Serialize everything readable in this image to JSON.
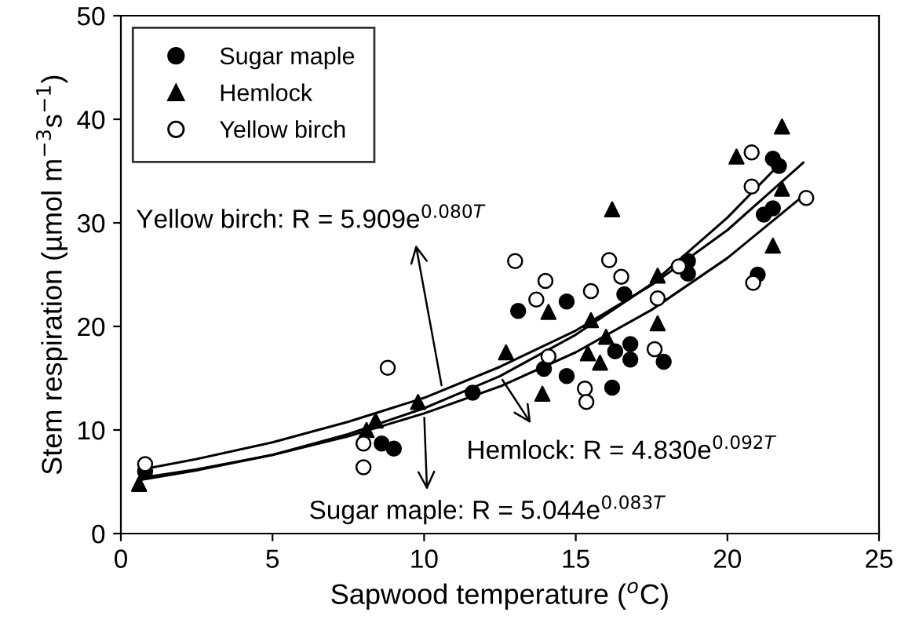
{
  "chart_data": {
    "type": "scatter",
    "xlabel": "Sapwood temperature ($^{o}$C)",
    "ylabel": "Stem respiration (µmol m$^{−3}$s$^{−1}$)",
    "xlim": [
      0,
      25
    ],
    "ylim": [
      0,
      50
    ],
    "xticks": [
      0,
      5,
      10,
      15,
      20,
      25
    ],
    "yticks": [
      0,
      10,
      20,
      30,
      40,
      50
    ],
    "grid": false,
    "legend": "top left",
    "series": [
      {
        "name": "Sugar maple",
        "color": "#000000",
        "marker": "circle",
        "x": [
          0.8,
          8.6,
          9.0,
          11.6,
          13.1,
          13.95,
          14.7,
          14.7,
          16.2,
          16.3,
          16.6,
          16.8,
          16.8,
          17.9,
          18.7,
          18.7,
          21.0,
          21.2,
          21.5,
          21.5,
          21.7
        ],
        "values": [
          6.0,
          8.7,
          8.2,
          13.6,
          21.5,
          15.9,
          15.2,
          22.4,
          14.1,
          17.6,
          23.1,
          18.3,
          16.8,
          16.6,
          26.3,
          25.1,
          25.0,
          30.8,
          31.4,
          36.2,
          35.5
        ]
      },
      {
        "name": "Hemlock",
        "color": "#000000",
        "marker": "triangle",
        "x": [
          0.6,
          8.1,
          8.4,
          9.8,
          12.7,
          13.9,
          14.1,
          15.4,
          15.5,
          15.8,
          16.0,
          16.2,
          17.7,
          17.7,
          20.3,
          21.5,
          21.8,
          21.8
        ],
        "values": [
          4.8,
          10.0,
          10.9,
          12.7,
          17.5,
          13.5,
          21.4,
          17.4,
          20.6,
          16.5,
          19.0,
          31.3,
          20.3,
          24.9,
          36.4,
          27.8,
          33.3,
          39.3
        ]
      },
      {
        "name": "Yellow birch",
        "color": "#ffffff",
        "marker": "circle",
        "x": [
          0.8,
          8.0,
          8.0,
          8.8,
          13.0,
          13.7,
          14.0,
          14.1,
          15.3,
          15.35,
          15.5,
          16.1,
          16.5,
          17.6,
          17.7,
          18.4,
          20.8,
          20.8,
          20.85,
          22.6
        ],
        "values": [
          6.7,
          8.7,
          6.4,
          16.0,
          26.3,
          22.6,
          24.4,
          17.1,
          14.0,
          12.7,
          23.4,
          26.4,
          24.8,
          17.8,
          22.7,
          25.8,
          36.8,
          33.5,
          24.2,
          32.4
        ]
      },
      {
        "type": "line",
        "color": "#000000",
        "x": [
          0.7,
          2.5,
          5,
          7.5,
          10,
          12.5,
          15,
          17.5,
          20,
          22.5
        ],
        "values": [
          6.2,
          7.2,
          8.8,
          10.8,
          13.1,
          16.1,
          19.6,
          24.0,
          29.3,
          35.8
        ]
      },
      {
        "type": "line",
        "color": "#000000",
        "x": [
          0.7,
          2.5,
          5,
          7.5,
          10,
          12.5,
          15,
          17.5,
          20,
          21.7
        ],
        "values": [
          5.2,
          6.1,
          7.6,
          9.6,
          12.1,
          15.2,
          19.2,
          24.1,
          30.5,
          35.6
        ]
      },
      {
        "type": "line",
        "color": "#000000",
        "x": [
          0.7,
          2.5,
          5,
          7.5,
          10,
          12.5,
          15,
          17.5,
          20,
          22.5
        ],
        "values": [
          5.4,
          6.2,
          7.6,
          9.4,
          11.6,
          14.2,
          17.5,
          21.6,
          26.6,
          32.6
        ]
      }
    ],
    "annotations": [
      {
        "text": "Yellow birch: R = 5.909e$^{0.080T}$",
        "x": 10.6,
        "y": 13.9
      },
      {
        "text": "Hemlock: R = 4.830e$^{0.092T}$",
        "x": 12.5,
        "y": 15.2
      },
      {
        "text": "Sugar maple: R = 5.044e$^{0.083T}$",
        "x": 10.0,
        "y": 11.6
      }
    ]
  }
}
